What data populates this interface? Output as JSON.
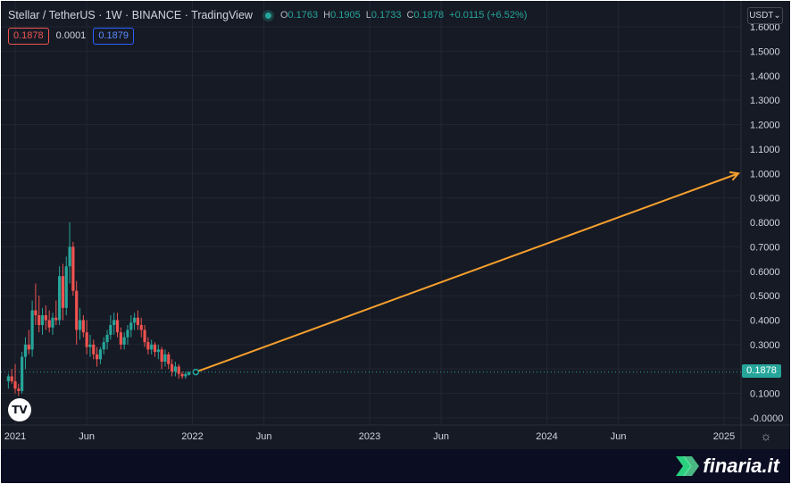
{
  "header": {
    "title": "Stellar / TetherUS · 1W · BINANCE · TradingView",
    "ohlc": {
      "open_label": "O",
      "open": "0.1763",
      "high_label": "H",
      "high": "0.1905",
      "low_label": "L",
      "low": "0.1733",
      "close_label": "C",
      "close": "0.1878",
      "change": "+0.0115 (+6.52%)"
    }
  },
  "badges": {
    "bid": "0.1878",
    "spread": "0.0001",
    "ask": "0.1879"
  },
  "currency_selector": "USDT",
  "last_price_tag": "0.1878",
  "tv_logo_text": "TV",
  "brand": {
    "name": "finaria.it",
    "icon": "finaria-chevron-icon"
  },
  "colors": {
    "up": "#26a69a",
    "down": "#ef5350",
    "projection": "#f7a02d",
    "background": "#161a25",
    "grid": "#232632",
    "axis_text": "#d1d4dc"
  },
  "chart_data": {
    "type": "candlestick",
    "symbol": "Stellar / TetherUS",
    "interval": "1W",
    "exchange": "BINANCE",
    "y_axis": {
      "ticks": [
        "1.6000",
        "1.5000",
        "1.4000",
        "1.3000",
        "1.2000",
        "1.1000",
        "1.0000",
        "0.9000",
        "0.8000",
        "0.7000",
        "0.6000",
        "0.5000",
        "0.4000",
        "0.3000",
        "0.2000",
        "0.1000",
        "-0.0000"
      ],
      "range": [
        -0.03,
        1.64
      ],
      "position": "right"
    },
    "x_axis": {
      "ticks": [
        "2021",
        "Jun",
        "2022",
        "Jun",
        "2023",
        "Jun",
        "2024",
        "Jun",
        "2025"
      ],
      "tick_weeks": [
        0,
        21,
        52,
        73,
        104,
        125,
        156,
        177,
        208
      ],
      "range_weeks": [
        -3,
        212
      ]
    },
    "grid": true,
    "last_price": 0.1878,
    "candles": [
      [
        0.15,
        0.18,
        0.12,
        0.17
      ],
      [
        0.17,
        0.2,
        0.14,
        0.15
      ],
      [
        0.15,
        0.22,
        0.1,
        0.12
      ],
      [
        0.12,
        0.14,
        0.09,
        0.11
      ],
      [
        0.11,
        0.27,
        0.1,
        0.25
      ],
      [
        0.25,
        0.33,
        0.2,
        0.3
      ],
      [
        0.3,
        0.36,
        0.26,
        0.28
      ],
      [
        0.28,
        0.48,
        0.25,
        0.44
      ],
      [
        0.44,
        0.55,
        0.38,
        0.42
      ],
      [
        0.42,
        0.5,
        0.35,
        0.38
      ],
      [
        0.38,
        0.45,
        0.34,
        0.42
      ],
      [
        0.42,
        0.46,
        0.36,
        0.4
      ],
      [
        0.4,
        0.44,
        0.35,
        0.37
      ],
      [
        0.37,
        0.43,
        0.34,
        0.41
      ],
      [
        0.41,
        0.48,
        0.38,
        0.4
      ],
      [
        0.4,
        0.62,
        0.38,
        0.58
      ],
      [
        0.58,
        0.63,
        0.4,
        0.45
      ],
      [
        0.45,
        0.66,
        0.42,
        0.62
      ],
      [
        0.62,
        0.8,
        0.55,
        0.7
      ],
      [
        0.7,
        0.72,
        0.5,
        0.52
      ],
      [
        0.52,
        0.56,
        0.3,
        0.36
      ],
      [
        0.36,
        0.45,
        0.32,
        0.4
      ],
      [
        0.4,
        0.42,
        0.33,
        0.35
      ],
      [
        0.35,
        0.4,
        0.26,
        0.29
      ],
      [
        0.29,
        0.34,
        0.25,
        0.3
      ],
      [
        0.3,
        0.32,
        0.24,
        0.26
      ],
      [
        0.26,
        0.29,
        0.21,
        0.24
      ],
      [
        0.24,
        0.29,
        0.22,
        0.28
      ],
      [
        0.28,
        0.33,
        0.26,
        0.31
      ],
      [
        0.31,
        0.36,
        0.28,
        0.34
      ],
      [
        0.34,
        0.42,
        0.32,
        0.38
      ],
      [
        0.38,
        0.43,
        0.34,
        0.4
      ],
      [
        0.4,
        0.43,
        0.33,
        0.35
      ],
      [
        0.35,
        0.37,
        0.28,
        0.3
      ],
      [
        0.3,
        0.35,
        0.28,
        0.33
      ],
      [
        0.33,
        0.38,
        0.3,
        0.36
      ],
      [
        0.36,
        0.42,
        0.33,
        0.39
      ],
      [
        0.39,
        0.43,
        0.36,
        0.41
      ],
      [
        0.41,
        0.44,
        0.36,
        0.38
      ],
      [
        0.38,
        0.41,
        0.33,
        0.36
      ],
      [
        0.36,
        0.38,
        0.29,
        0.31
      ],
      [
        0.31,
        0.33,
        0.26,
        0.28
      ],
      [
        0.28,
        0.32,
        0.26,
        0.3
      ],
      [
        0.3,
        0.31,
        0.25,
        0.27
      ],
      [
        0.27,
        0.3,
        0.24,
        0.28
      ],
      [
        0.28,
        0.29,
        0.2,
        0.23
      ],
      [
        0.23,
        0.28,
        0.21,
        0.26
      ],
      [
        0.26,
        0.27,
        0.2,
        0.22
      ],
      [
        0.22,
        0.24,
        0.17,
        0.19
      ],
      [
        0.19,
        0.23,
        0.17,
        0.21
      ],
      [
        0.21,
        0.22,
        0.16,
        0.18
      ],
      [
        0.18,
        0.19,
        0.16,
        0.17
      ],
      [
        0.17,
        0.19,
        0.16,
        0.18
      ],
      [
        0.1763,
        0.1905,
        0.1733,
        0.1878
      ]
    ],
    "annotations": [
      {
        "type": "arrow",
        "from": {
          "week": 53,
          "price": 0.1878
        },
        "to": {
          "week": 208,
          "price": 1.0
        }
      },
      {
        "type": "horizontal_dotted_line",
        "price": 0.1878
      }
    ]
  }
}
